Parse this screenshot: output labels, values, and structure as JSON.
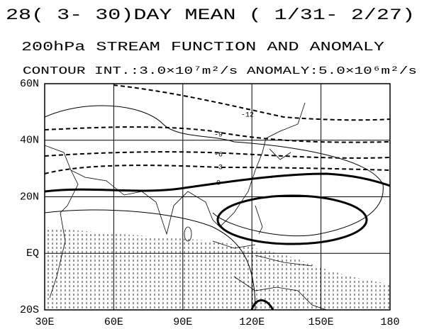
{
  "header": {
    "title": "28(  3- 30)DAY MEAN ( 1/31- 2/27)",
    "subtitle": "200hPa STREAM FUNCTION AND ANOMALY",
    "note": "CONTOUR INT.:3.0×10⁷m²/s  ANOMALY:5.0×10⁶m²/s"
  },
  "map": {
    "lat_labels": [
      "60N",
      "40N",
      "20N",
      "EQ",
      "20S"
    ],
    "lon_labels": [
      "30E",
      "60E",
      "90E",
      "120E",
      "150E",
      "180"
    ],
    "contour_labels": [
      "-12",
      "-9",
      "-6",
      "-3",
      "0"
    ]
  }
}
